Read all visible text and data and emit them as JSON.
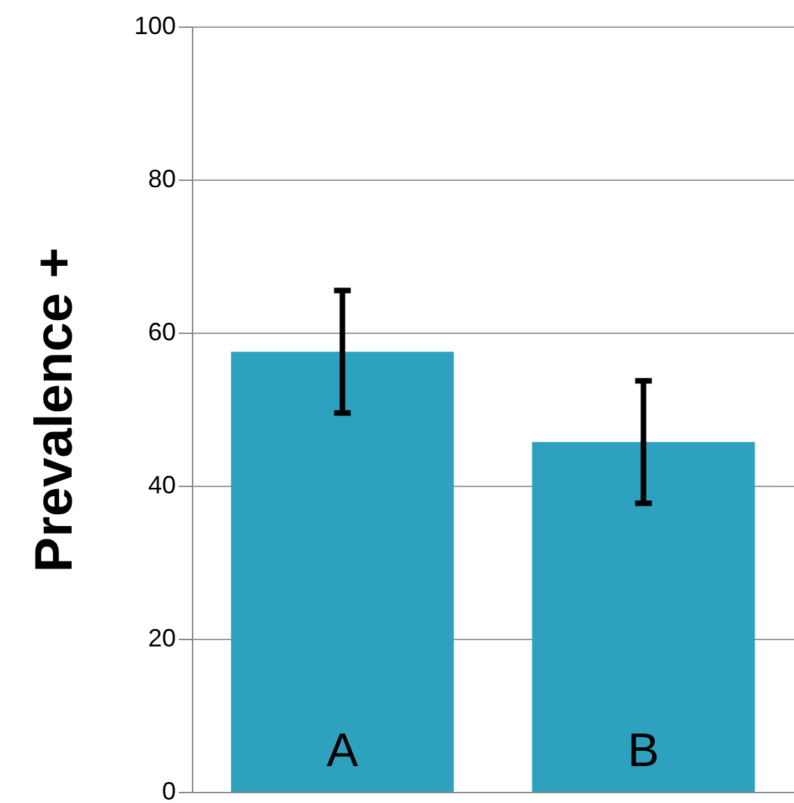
{
  "chart_data": {
    "type": "bar",
    "ylabel": "Prevalence +",
    "categories": [
      "A",
      "B"
    ],
    "values": [
      57.5,
      45.7
    ],
    "errors": [
      8,
      8
    ],
    "color": "#2ea1bf",
    "ylim": [
      0,
      100
    ],
    "yticks": [
      0,
      20,
      40,
      60,
      80,
      100
    ],
    "grid": "y"
  }
}
